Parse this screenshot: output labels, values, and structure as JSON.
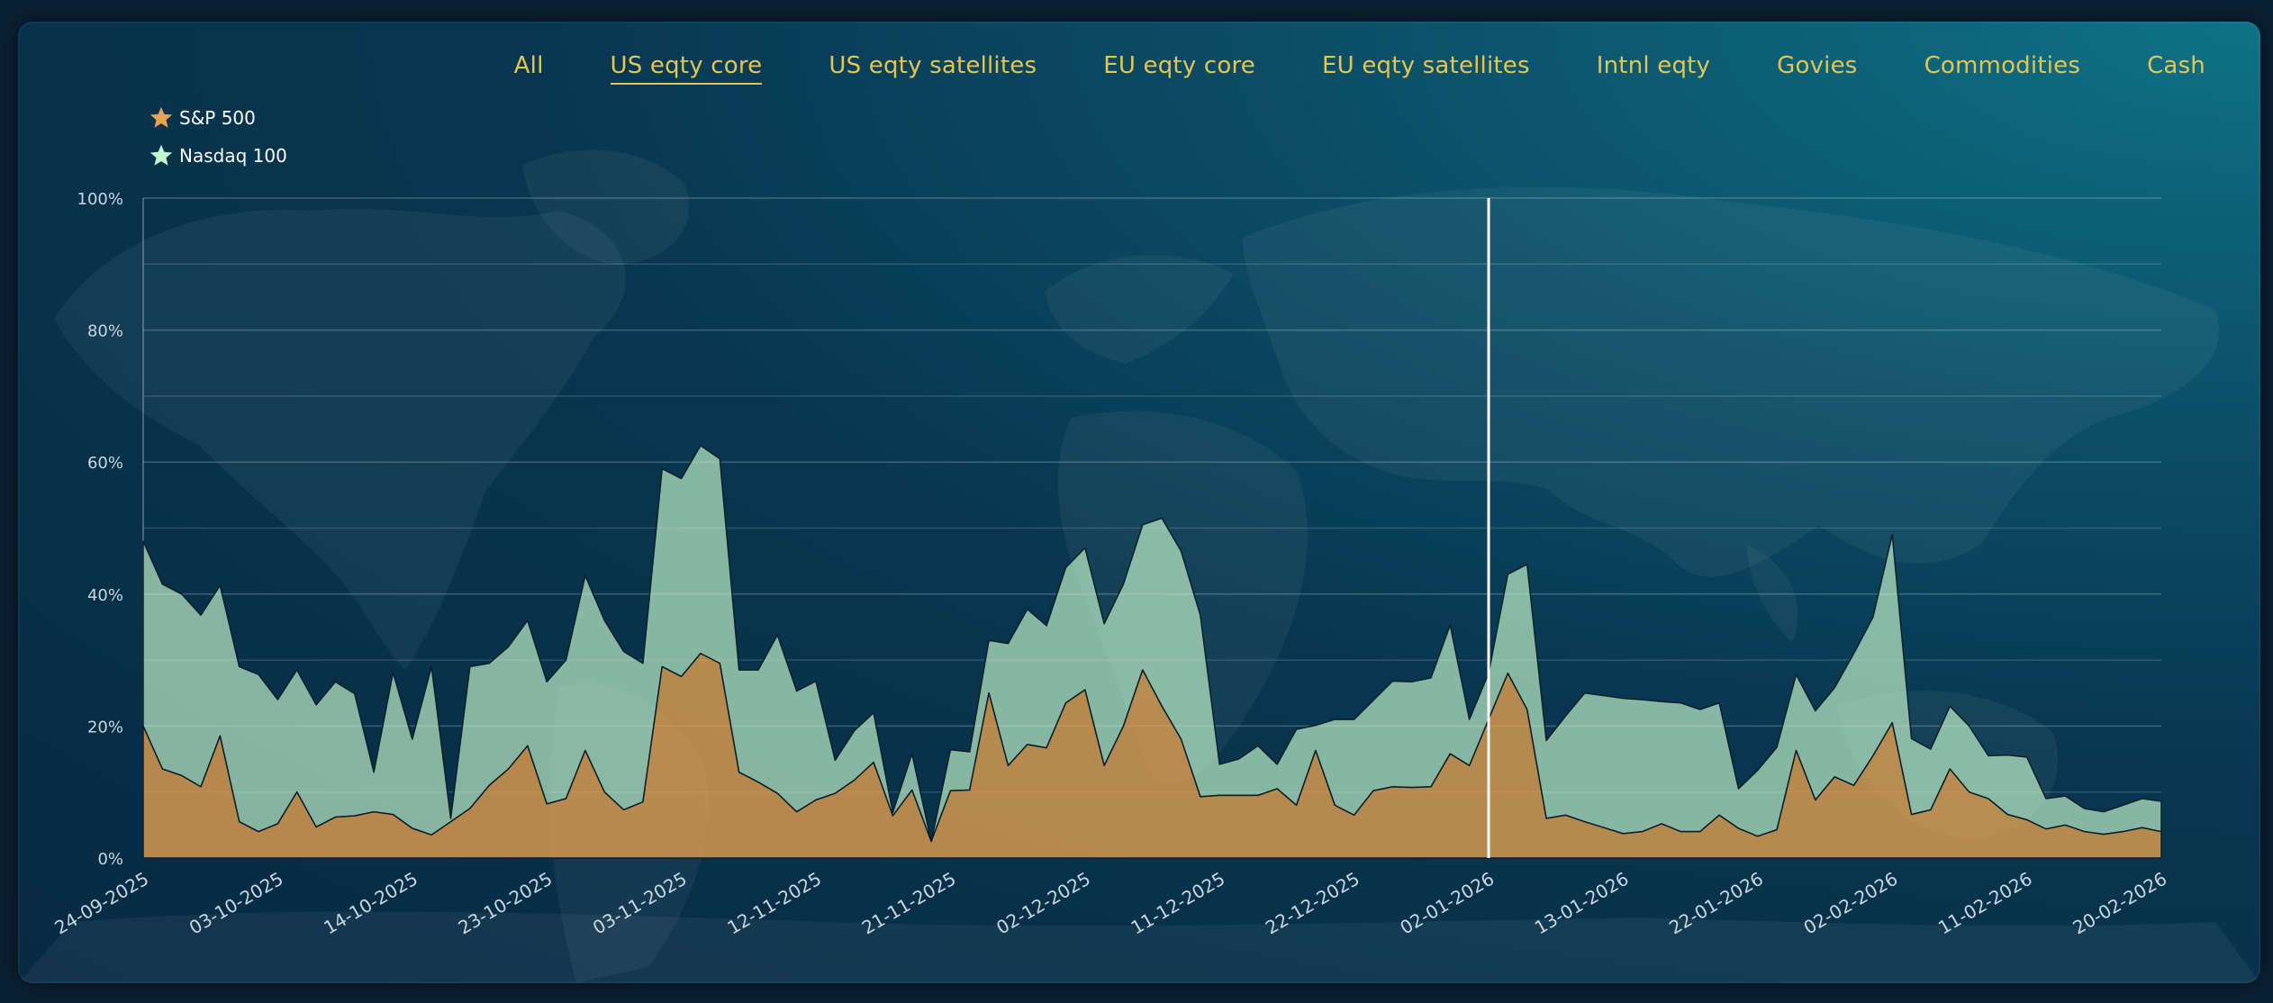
{
  "tabs": [
    {
      "label": "All",
      "active": false
    },
    {
      "label": "US eqty core",
      "active": true
    },
    {
      "label": "US eqty satellites",
      "active": false
    },
    {
      "label": "EU eqty core",
      "active": false
    },
    {
      "label": "EU eqty satellites",
      "active": false
    },
    {
      "label": "Intnl eqty",
      "active": false
    },
    {
      "label": "Govies",
      "active": false
    },
    {
      "label": "Commodities",
      "active": false
    },
    {
      "label": "Cash",
      "active": false
    }
  ],
  "colors": {
    "sp500": "#e8a14f",
    "nasdaq": "#c4f5cc",
    "tab_text": "#e5c552",
    "marker_line": "#ffffff"
  },
  "legend_icons": [
    "star-icon",
    "star-icon"
  ],
  "chart_data": {
    "type": "area",
    "stacked": true,
    "ylim": [
      0,
      100
    ],
    "y_ticks": [
      "0%",
      "20%",
      "40%",
      "60%",
      "80%",
      "100%"
    ],
    "x_ticks": [
      "24-09-2025",
      "03-10-2025",
      "14-10-2025",
      "23-10-2025",
      "03-11-2025",
      "12-11-2025",
      "21-11-2025",
      "02-12-2025",
      "11-12-2025",
      "22-12-2025",
      "02-01-2026",
      "13-01-2026",
      "22-01-2026",
      "02-02-2026",
      "11-02-2026",
      "20-02-2026"
    ],
    "vertical_marker": "02-01-2026",
    "grid": true,
    "legend_position": "top-left",
    "series": [
      {
        "name": "S&P 500",
        "values": [
          20,
          13.5,
          12.5,
          10.8,
          18.5,
          5.5,
          4,
          5.2,
          10,
          4.7,
          6.2,
          6.4,
          7,
          6.6,
          4.5,
          3.5,
          5.5,
          7.5,
          11,
          13.5,
          17,
          8.2,
          9,
          16.3,
          10,
          7.3,
          8.5,
          29,
          27.5,
          31,
          29.5,
          13,
          11.5,
          9.8,
          7,
          8.8,
          9.8,
          11.8,
          14.5,
          6.4,
          10.3,
          2.5,
          10.2,
          10.3,
          25,
          14,
          17.2,
          16.7,
          23.5,
          25.5,
          14,
          20,
          28.5,
          23,
          18,
          9.3,
          9.5,
          9.5,
          9.5,
          10.5,
          8,
          16.3,
          8,
          6.5,
          10.2,
          10.8,
          10.7,
          10.8,
          15.8,
          14,
          21,
          28,
          22.5,
          6,
          6.5,
          5.5,
          4.6,
          3.7,
          4,
          5.2,
          4,
          4,
          6.5,
          4.5,
          3.3,
          4.3,
          16.3,
          8.8,
          12.3,
          11,
          15.5,
          20.5,
          6.6,
          7.3,
          13.5,
          10,
          9,
          6.6,
          5.8,
          4.4,
          5,
          4,
          3.6,
          4,
          4.6,
          4
        ]
      },
      {
        "name": "Nasdaq 100",
        "values": [
          28,
          28,
          27.5,
          26,
          22.8,
          23.5,
          23.8,
          18.8,
          18.5,
          18.5,
          20.5,
          18.5,
          6,
          21.5,
          13.5,
          25.5,
          0.5,
          21.5,
          18.5,
          18.5,
          19,
          18.5,
          21,
          26.5,
          26,
          24,
          21,
          30,
          30,
          31.5,
          31,
          15.5,
          17,
          24,
          18.3,
          18,
          5,
          7.5,
          7.5,
          0.5,
          5.5,
          0,
          6.2,
          5.8,
          8,
          18.5,
          20.5,
          18.5,
          20.5,
          21.5,
          21.5,
          21.5,
          22,
          28.5,
          28.5,
          27.5,
          4.7,
          5.5,
          7.5,
          3.7,
          11.5,
          3.8,
          13,
          14.5,
          13.7,
          16,
          16,
          16.5,
          19.5,
          7,
          7,
          15,
          22,
          11.8,
          15,
          19.5,
          20,
          20.5,
          20,
          18.5,
          19.5,
          18.5,
          17,
          6,
          10,
          12.5,
          11.5,
          13.5,
          13.5,
          20,
          21,
          28.5,
          11.5,
          9.2,
          9.5,
          10,
          6.5,
          9,
          9.5,
          4.6,
          4.4,
          3.5,
          3.4,
          4,
          4.4,
          4.6
        ]
      }
    ]
  }
}
